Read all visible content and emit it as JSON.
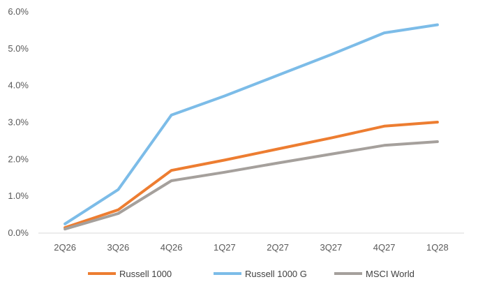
{
  "chart_data": {
    "type": "line",
    "title": "",
    "xlabel": "",
    "ylabel": "",
    "categories": [
      "2Q26",
      "3Q26",
      "4Q26",
      "1Q27",
      "2Q27",
      "3Q27",
      "4Q27",
      "1Q28"
    ],
    "ylim": [
      0,
      6.0
    ],
    "yticks": [
      0,
      1,
      2,
      3,
      4,
      5,
      6
    ],
    "ytick_labels": [
      "0.0%",
      "1.0%",
      "2.0%",
      "3.0%",
      "4.0%",
      "5.0%",
      "6.0%"
    ],
    "grid": false,
    "legend_position": "bottom",
    "series": [
      {
        "name": "Russell 1000",
        "color": "#ED7D31",
        "values": [
          0.15,
          0.63,
          1.7,
          1.98,
          2.28,
          2.58,
          2.9,
          3.01
        ]
      },
      {
        "name": "Russell 1000 G",
        "color": "#7CBCE8",
        "values": [
          0.25,
          1.18,
          3.2,
          3.72,
          4.28,
          4.84,
          5.43,
          5.65
        ]
      },
      {
        "name": "MSCI World",
        "color": "#A5A09C",
        "values": [
          0.11,
          0.53,
          1.42,
          1.65,
          1.9,
          2.14,
          2.38,
          2.48
        ]
      }
    ]
  }
}
